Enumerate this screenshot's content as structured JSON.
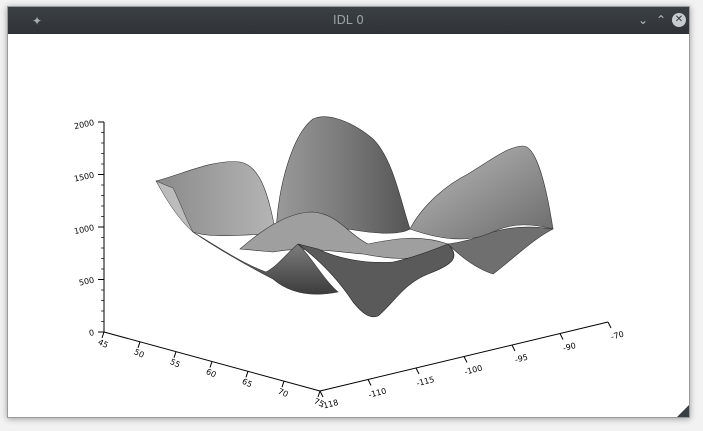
{
  "window": {
    "title": "IDL 0",
    "icons": {
      "pin": "pin-icon",
      "minimize": "chevron-down-icon",
      "maximize": "chevron-up-icon",
      "close": "close-icon"
    }
  },
  "chart_data": {
    "type": "surface",
    "title": "",
    "z_ticks": [
      "0",
      "500",
      "1000",
      "1500",
      "2000"
    ],
    "x_ticks": [
      "-118",
      "-110",
      "-115",
      "-100",
      "-95",
      "-90",
      "-70"
    ],
    "y_ticks": [
      "45",
      "50",
      "55",
      "60",
      "65",
      "70",
      "75"
    ],
    "shading": "grayscale"
  }
}
